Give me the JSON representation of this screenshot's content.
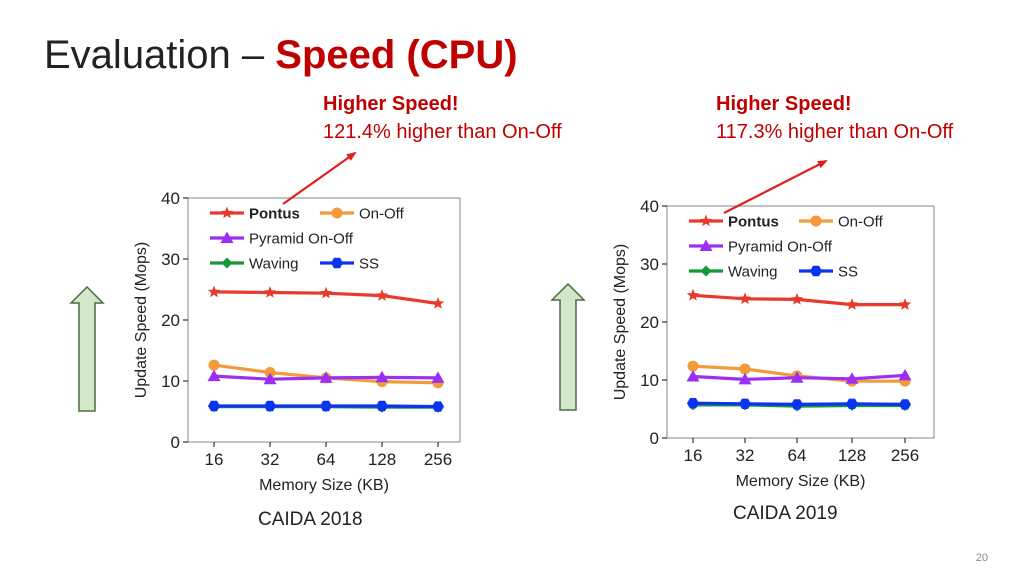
{
  "slide": {
    "title_plain": "Evaluation – ",
    "title_accent": "Speed (CPU)",
    "page_number": "20",
    "accent_color": "#c00000"
  },
  "callouts": [
    {
      "heading": "Higher Speed!",
      "text": "121.4% higher than On-Off"
    },
    {
      "heading": "Higher Speed!",
      "text": "117.3% higher than On-Off"
    }
  ],
  "captions": [
    "CAIDA 2018",
    "CAIDA 2019"
  ],
  "indicators": [
    {
      "icon": "up-arrow-icon",
      "fill": "#d3e7c9",
      "stroke": "#4a6b42"
    },
    {
      "icon": "up-arrow-icon",
      "fill": "#d3e7c9",
      "stroke": "#4a6b42"
    }
  ],
  "chart_data": [
    {
      "type": "line",
      "title": "CAIDA 2018",
      "xlabel": "Memory Size (KB)",
      "ylabel": "Update Speed (Mops)",
      "categories": [
        "16",
        "32",
        "64",
        "128",
        "256"
      ],
      "ylim": [
        0,
        40
      ],
      "yticks": [
        0,
        10,
        20,
        30,
        40
      ],
      "legend": "top-left",
      "series": [
        {
          "name": "Pontus",
          "color": "#e8392d",
          "marker": "star",
          "bold": true,
          "values": [
            24.6,
            24.5,
            24.4,
            24.0,
            22.7
          ]
        },
        {
          "name": "On-Off",
          "color": "#f39a3a",
          "marker": "circle",
          "values": [
            12.6,
            11.4,
            10.5,
            9.9,
            9.7
          ]
        },
        {
          "name": "Pyramid On-Off",
          "color": "#9b2ff5",
          "marker": "triangle",
          "values": [
            10.8,
            10.3,
            10.5,
            10.6,
            10.5
          ]
        },
        {
          "name": "Waving",
          "color": "#13993a",
          "marker": "diamond",
          "values": [
            5.8,
            5.8,
            5.8,
            5.7,
            5.7
          ]
        },
        {
          "name": "SS",
          "color": "#0b34f0",
          "marker": "hexagon",
          "values": [
            5.9,
            5.9,
            5.9,
            5.9,
            5.8
          ]
        }
      ]
    },
    {
      "type": "line",
      "title": "CAIDA 2019",
      "xlabel": "Memory Size (KB)",
      "ylabel": "Update Speed (Mops)",
      "categories": [
        "16",
        "32",
        "64",
        "128",
        "256"
      ],
      "ylim": [
        0,
        40
      ],
      "yticks": [
        0,
        10,
        20,
        30,
        40
      ],
      "legend": "top-left",
      "series": [
        {
          "name": "Pontus",
          "color": "#e8392d",
          "marker": "star",
          "bold": true,
          "values": [
            24.6,
            24.0,
            23.9,
            23.0,
            23.0
          ]
        },
        {
          "name": "On-Off",
          "color": "#f39a3a",
          "marker": "circle",
          "values": [
            12.4,
            11.9,
            10.7,
            9.8,
            9.8
          ]
        },
        {
          "name": "Pyramid On-Off",
          "color": "#9b2ff5",
          "marker": "triangle",
          "values": [
            10.6,
            10.1,
            10.4,
            10.2,
            10.8
          ]
        },
        {
          "name": "Waving",
          "color": "#13993a",
          "marker": "diamond",
          "values": [
            5.7,
            5.7,
            5.5,
            5.6,
            5.6
          ]
        },
        {
          "name": "SS",
          "color": "#0b34f0",
          "marker": "hexagon",
          "values": [
            6.0,
            5.9,
            5.8,
            5.9,
            5.8
          ]
        }
      ]
    }
  ]
}
